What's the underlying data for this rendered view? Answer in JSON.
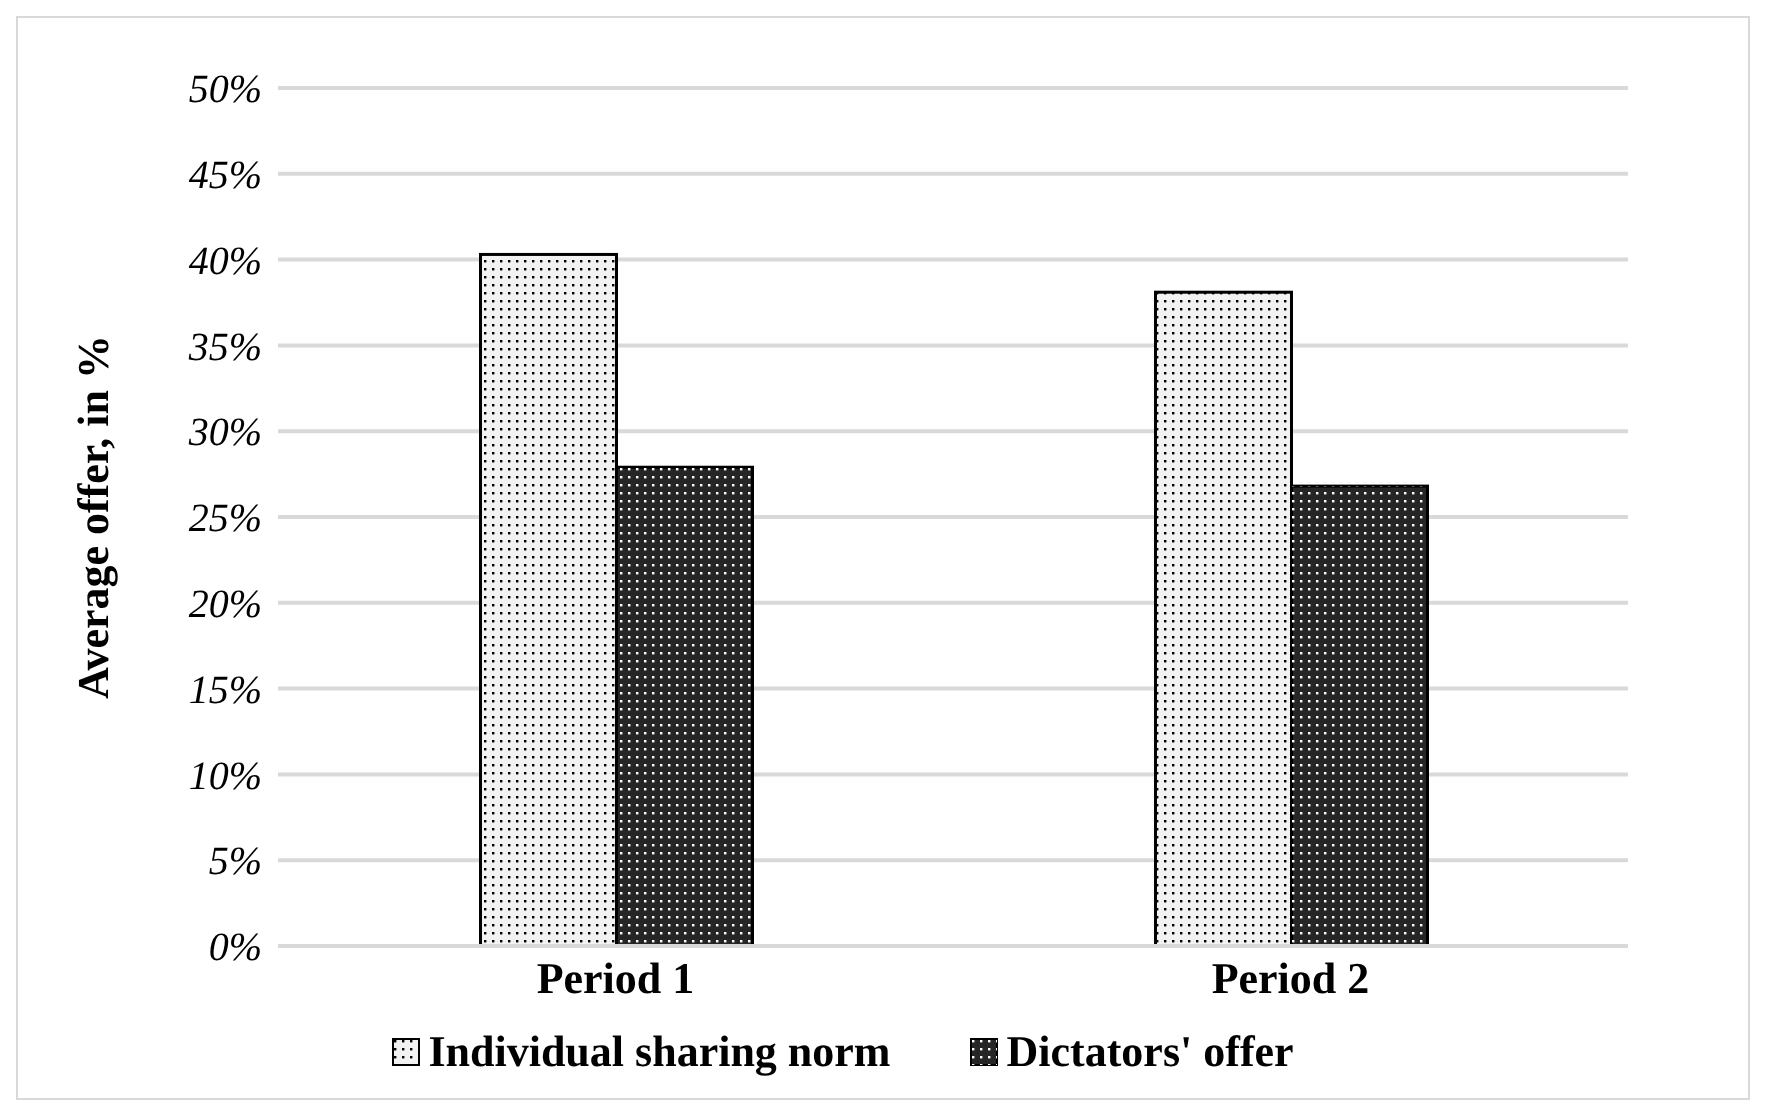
{
  "chart_data": {
    "type": "bar",
    "ylabel": "Average offer, in %",
    "categories": [
      "Period 1",
      "Period 2"
    ],
    "series": [
      {
        "name": "Individual sharing norm",
        "color": "#f2f2f2",
        "values": [
          40.3,
          38.1
        ]
      },
      {
        "name": "Dictators' offer",
        "color": "#262626",
        "values": [
          27.9,
          26.8
        ]
      }
    ],
    "ylim": [
      0,
      50
    ],
    "yticks": [
      {
        "value": 0,
        "label": "0%"
      },
      {
        "value": 5,
        "label": "5%"
      },
      {
        "value": 10,
        "label": "10%"
      },
      {
        "value": 15,
        "label": "15%"
      },
      {
        "value": 20,
        "label": "20%"
      },
      {
        "value": 25,
        "label": "25%"
      },
      {
        "value": 30,
        "label": "30%"
      },
      {
        "value": 35,
        "label": "35%"
      },
      {
        "value": 40,
        "label": "40%"
      },
      {
        "value": 45,
        "label": "45%"
      },
      {
        "value": 50,
        "label": "50%"
      }
    ],
    "grid": "y",
    "legend": "bottom"
  }
}
